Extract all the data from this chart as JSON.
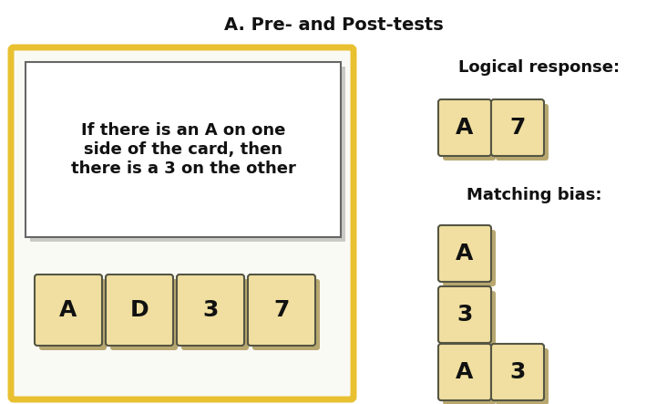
{
  "title": "A. Pre- and Post-tests",
  "title_fontsize": 14,
  "background_color": "#ffffff",
  "card_face_color": "#f0dfa0",
  "card_shadow_color": "#b8a870",
  "card_edge_color": "#555544",
  "outer_box_color": "#e8c030",
  "outer_box_bg": "#fafaf5",
  "rule_box_bg": "#ffffff",
  "rule_box_edge": "#666666",
  "rule_text": "If there is an A on one\nside of the card, then\nthere is a 3 on the other",
  "rule_text_fontsize": 13,
  "cards_bottom": [
    "A",
    "D",
    "3",
    "7"
  ],
  "logical_label": "Logical response:",
  "logical_cards": [
    "A",
    "7"
  ],
  "matching_label": "Matching bias:",
  "matching_row1": [
    "A"
  ],
  "matching_row2": [
    "3"
  ],
  "matching_row3": [
    "A",
    "3"
  ],
  "label_fontsize": 13,
  "card_fontsize": 18
}
